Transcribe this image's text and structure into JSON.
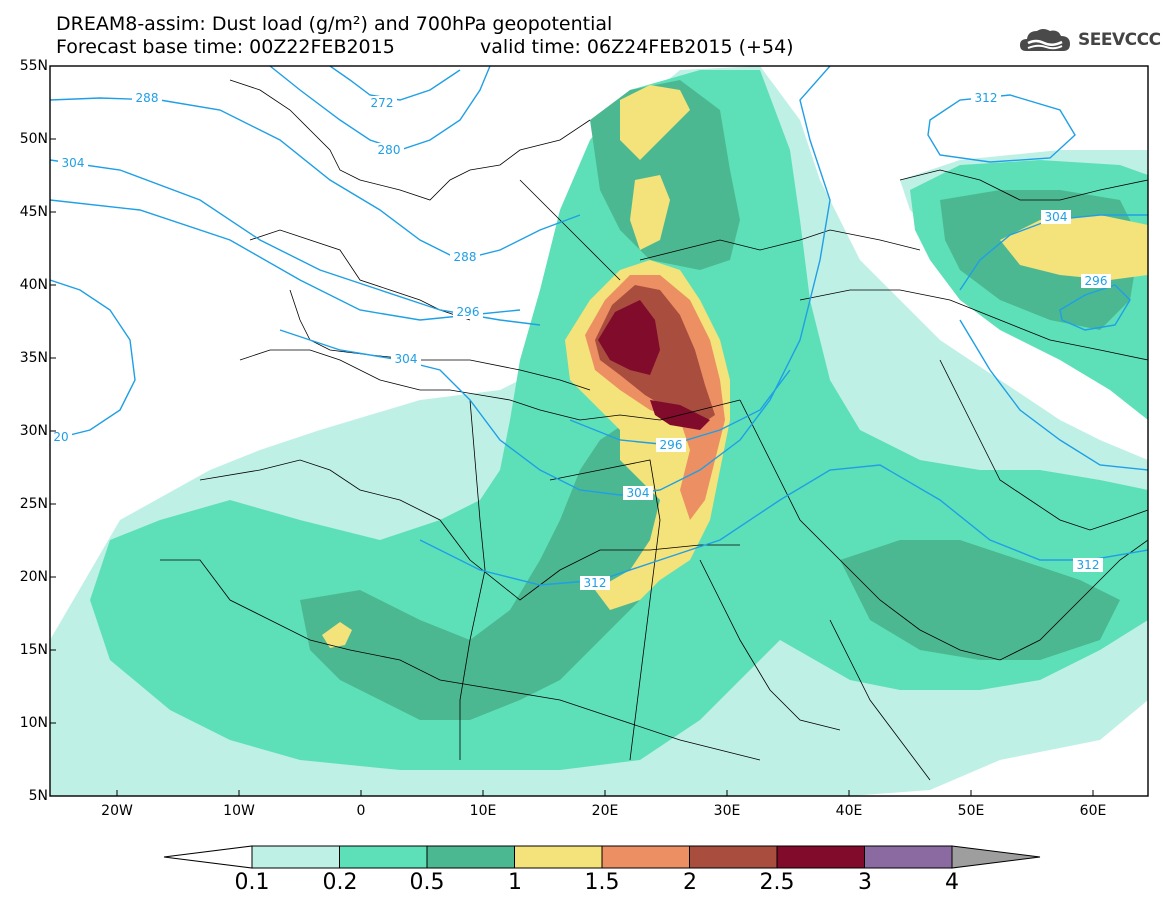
{
  "header": {
    "title_line1": "DREAM8-assim: Dust load (g/m²) and 700hPa geopotential",
    "title_line2_left": "Forecast base time: 00Z22FEB2015",
    "title_line2_right": "valid time: 06Z24FEB2015 (+54)",
    "logo_text": "SEEVCCC"
  },
  "axes": {
    "lat_labels": [
      "55N",
      "50N",
      "45N",
      "40N",
      "35N",
      "30N",
      "25N",
      "20N",
      "15N",
      "10N",
      "5N"
    ],
    "lon_labels": [
      "20W",
      "10W",
      "0",
      "10E",
      "20E",
      "30E",
      "40E",
      "50E",
      "60E"
    ]
  },
  "contour_labels": [
    "288",
    "272",
    "280",
    "304",
    "288",
    "296",
    "304",
    "312",
    "304",
    "296",
    "296",
    "304",
    "312",
    "312",
    "20"
  ],
  "colorbar": {
    "labels": [
      "0.1",
      "0.2",
      "0.5",
      "1",
      "1.5",
      "2",
      "2.5",
      "3",
      "4"
    ],
    "colors": [
      "#bff0e6",
      "#5de0b8",
      "#4cb891",
      "#f4e27a",
      "#ec8f62",
      "#a94d3f",
      "#800b2b",
      "#8a6aa1"
    ],
    "over_color": "#9e9e9e",
    "under_color": "#ffffff"
  },
  "colors": {
    "contour": "#1f9fe6",
    "border": "#000000"
  }
}
